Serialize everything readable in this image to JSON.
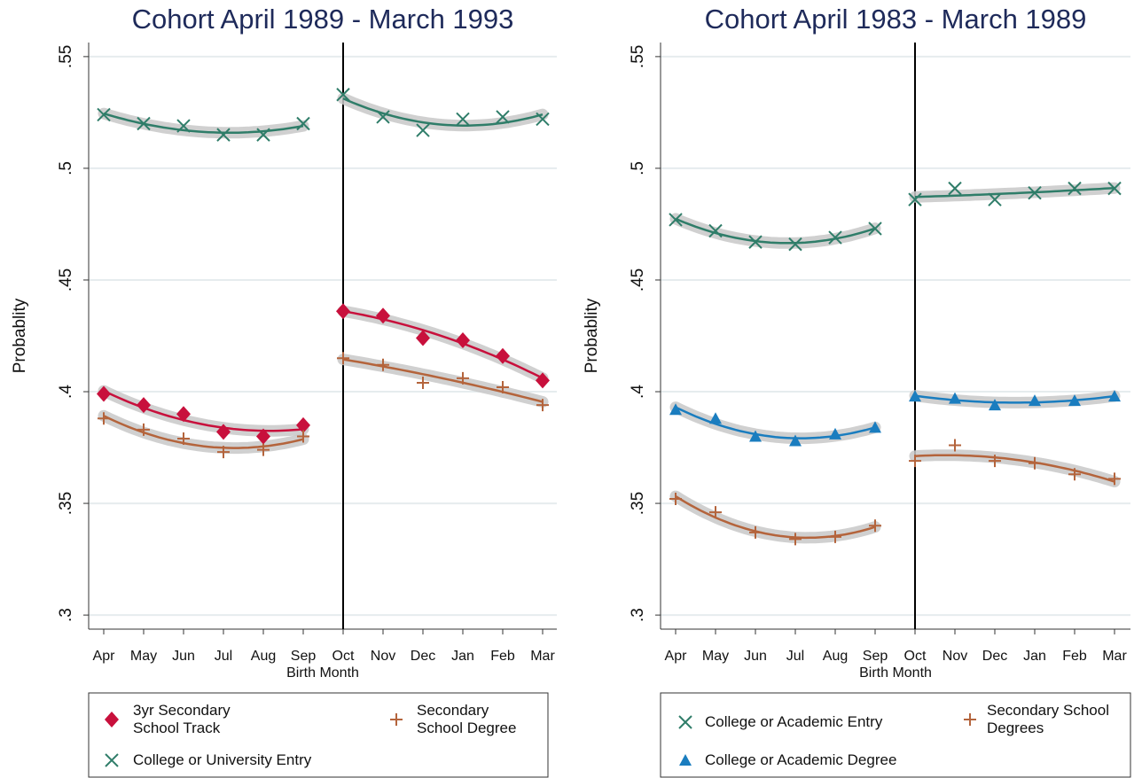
{
  "chart_data": [
    {
      "type": "line",
      "title": "Cohort April 1989 - March 1993",
      "x_label": "Birth Month",
      "y_label": "Probablity",
      "categories": [
        "Apr",
        "May",
        "Jun",
        "Jul",
        "Aug",
        "Sep",
        "Oct",
        "Nov",
        "Dec",
        "Jan",
        "Feb",
        "Mar"
      ],
      "cutoff": "Oct",
      "ylim": [
        0.2937,
        0.5563
      ],
      "yticks": [
        {
          "value": 0.3,
          "label": ".3"
        },
        {
          "value": 0.35,
          "label": ".35"
        },
        {
          "value": 0.4,
          "label": ".4"
        },
        {
          "value": 0.45,
          "label": ".45"
        },
        {
          "value": 0.5,
          "label": ".5"
        },
        {
          "value": 0.55,
          "label": ".55"
        }
      ],
      "grid": true,
      "series": [
        {
          "name": "3yr Secondary School Track",
          "color": "#c8103c",
          "marker": "diamond",
          "values": [
            0.399,
            0.394,
            0.39,
            0.382,
            0.38,
            0.385,
            0.436,
            0.434,
            0.424,
            0.423,
            0.416,
            0.405
          ]
        },
        {
          "name": "Secondary School Degree",
          "color": "#b4643c",
          "marker": "plus",
          "values": [
            0.388,
            0.383,
            0.379,
            0.373,
            0.374,
            0.38,
            0.415,
            0.412,
            0.404,
            0.406,
            0.402,
            0.394
          ]
        },
        {
          "name": "College or University Entry",
          "color": "#2f7d69",
          "marker": "x",
          "values": [
            0.524,
            0.52,
            0.519,
            0.515,
            0.515,
            0.52,
            0.533,
            0.523,
            0.517,
            0.522,
            0.523,
            0.522
          ]
        }
      ]
    },
    {
      "type": "line",
      "title": "Cohort April 1983 - March 1989",
      "x_label": "Birth Month",
      "y_label": "Probablity",
      "categories": [
        "Apr",
        "May",
        "Jun",
        "Jul",
        "Aug",
        "Sep",
        "Oct",
        "Nov",
        "Dec",
        "Jan",
        "Feb",
        "Mar"
      ],
      "cutoff": "Oct",
      "ylim": [
        0.2937,
        0.5563
      ],
      "yticks": [
        {
          "value": 0.3,
          "label": ".3"
        },
        {
          "value": 0.35,
          "label": ".35"
        },
        {
          "value": 0.4,
          "label": ".4"
        },
        {
          "value": 0.45,
          "label": ".45"
        },
        {
          "value": 0.5,
          "label": ".5"
        },
        {
          "value": 0.55,
          "label": ".55"
        }
      ],
      "grid": true,
      "series": [
        {
          "name": "College or Academic Entry",
          "color": "#2f7d69",
          "marker": "x",
          "values": [
            0.477,
            0.472,
            0.467,
            0.466,
            0.469,
            0.473,
            0.486,
            0.491,
            0.486,
            0.489,
            0.491,
            0.491
          ]
        },
        {
          "name": "Secondary School Degrees",
          "color": "#b4643c",
          "marker": "plus",
          "values": [
            0.352,
            0.346,
            0.337,
            0.334,
            0.335,
            0.34,
            0.369,
            0.376,
            0.369,
            0.368,
            0.363,
            0.361
          ]
        },
        {
          "name": "College or Academic Degree",
          "color": "#1a7dbf",
          "marker": "triangle",
          "values": [
            0.392,
            0.388,
            0.38,
            0.378,
            0.381,
            0.384,
            0.398,
            0.397,
            0.394,
            0.396,
            0.396,
            0.398
          ]
        }
      ]
    }
  ]
}
